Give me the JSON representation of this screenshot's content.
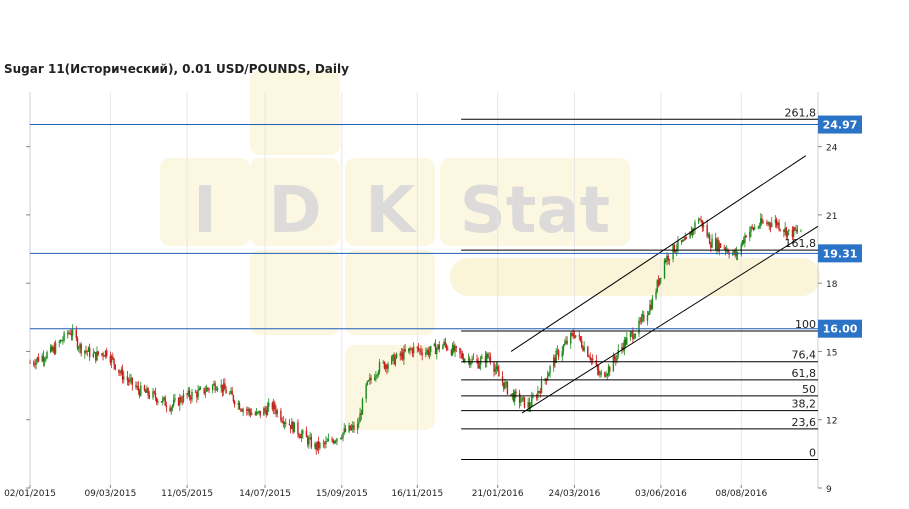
{
  "chart_data": {
    "type": "candlestick",
    "title": "Sugar 11(Исторический), 0.01 USD/POUNDS, Daily",
    "watermark": [
      "I",
      "D",
      "K",
      "Stat"
    ],
    "ylim": [
      9,
      26.4
    ],
    "y_ticks": [
      "9",
      "12",
      "15",
      "18",
      "21",
      "24"
    ],
    "x_ticks": [
      "02/01/2015",
      "09/03/2015",
      "11/05/2015",
      "14/07/2015",
      "15/09/2015",
      "16/11/2015",
      "21/01/2016",
      "24/03/2016",
      "03/06/2016",
      "08/08/2016"
    ],
    "x_range": [
      "2015-01-02",
      "2016-10-10"
    ],
    "close_series": [
      [
        "2015-01-02",
        14.5
      ],
      [
        "2015-01-20",
        15.0
      ],
      [
        "2015-02-04",
        15.9
      ],
      [
        "2015-02-12",
        15.2
      ],
      [
        "2015-02-24",
        14.8
      ],
      [
        "2015-03-06",
        15.0
      ],
      [
        "2015-03-18",
        14.0
      ],
      [
        "2015-04-01",
        13.3
      ],
      [
        "2015-04-15",
        13.0
      ],
      [
        "2015-04-28",
        12.6
      ],
      [
        "2015-05-08",
        13.0
      ],
      [
        "2015-05-22",
        13.2
      ],
      [
        "2015-06-05",
        13.6
      ],
      [
        "2015-06-15",
        13.1
      ],
      [
        "2015-06-26",
        12.5
      ],
      [
        "2015-07-07",
        12.2
      ],
      [
        "2015-07-20",
        12.6
      ],
      [
        "2015-07-30",
        12.0
      ],
      [
        "2015-08-10",
        11.5
      ],
      [
        "2015-08-24",
        10.8
      ],
      [
        "2015-09-01",
        10.9
      ],
      [
        "2015-09-15",
        11.4
      ],
      [
        "2015-09-28",
        11.7
      ],
      [
        "2015-10-05",
        13.4
      ],
      [
        "2015-10-15",
        14.3
      ],
      [
        "2015-10-30",
        14.7
      ],
      [
        "2015-11-12",
        15.1
      ],
      [
        "2015-11-26",
        15.0
      ],
      [
        "2015-12-08",
        15.3
      ],
      [
        "2015-12-22",
        14.8
      ],
      [
        "2016-01-05",
        14.5
      ],
      [
        "2016-01-14",
        14.8
      ],
      [
        "2016-01-22",
        13.9
      ],
      [
        "2016-02-01",
        13.1
      ],
      [
        "2016-02-16",
        12.6
      ],
      [
        "2016-02-26",
        13.5
      ],
      [
        "2016-03-09",
        14.8
      ],
      [
        "2016-03-24",
        15.8
      ],
      [
        "2016-04-05",
        14.9
      ],
      [
        "2016-04-14",
        13.9
      ],
      [
        "2016-04-22",
        14.3
      ],
      [
        "2016-05-03",
        15.3
      ],
      [
        "2016-05-16",
        16.1
      ],
      [
        "2016-05-27",
        17.2
      ],
      [
        "2016-06-06",
        19.0
      ],
      [
        "2016-06-15",
        19.6
      ],
      [
        "2016-06-24",
        19.8
      ],
      [
        "2016-07-04",
        20.9
      ],
      [
        "2016-07-14",
        19.8
      ],
      [
        "2016-07-25",
        19.6
      ],
      [
        "2016-08-04",
        19.2
      ],
      [
        "2016-08-12",
        20.2
      ],
      [
        "2016-08-24",
        20.6
      ],
      [
        "2016-09-05",
        20.7
      ],
      [
        "2016-09-16",
        20.2
      ],
      [
        "2016-09-26",
        20.3
      ]
    ],
    "horizontal_levels": [
      {
        "value": 24.97,
        "label": "24.97"
      },
      {
        "value": 19.31,
        "label": "19.31"
      },
      {
        "value": 16.0,
        "label": "16.00"
      }
    ],
    "fibonacci": {
      "start_date": "2015-12-22",
      "end_date": "2016-10-10",
      "levels": [
        {
          "label": "261,8",
          "value": 25.2
        },
        {
          "label": "161,8",
          "value": 19.45
        },
        {
          "label": "100",
          "value": 15.9
        },
        {
          "label": "76,4",
          "value": 14.55
        },
        {
          "label": "61,8",
          "value": 13.75
        },
        {
          "label": "50",
          "value": 13.05
        },
        {
          "label": "38,2",
          "value": 12.4
        },
        {
          "label": "23,6",
          "value": 11.6
        },
        {
          "label": "0",
          "value": 10.25
        }
      ]
    },
    "trend_channel": [
      {
        "from": [
          "2016-02-01",
          15.0
        ],
        "to": [
          "2016-09-30",
          23.6
        ]
      },
      {
        "from": [
          "2016-02-10",
          12.3
        ],
        "to": [
          "2016-10-10",
          20.5
        ]
      }
    ],
    "colors": {
      "up": "#1a8a1a",
      "down": "#cc1a1a",
      "level_line": "#1f5fb8",
      "badge": "#2a73c6",
      "fib_line": "#000000",
      "watermark": "#f5e7a8"
    }
  }
}
